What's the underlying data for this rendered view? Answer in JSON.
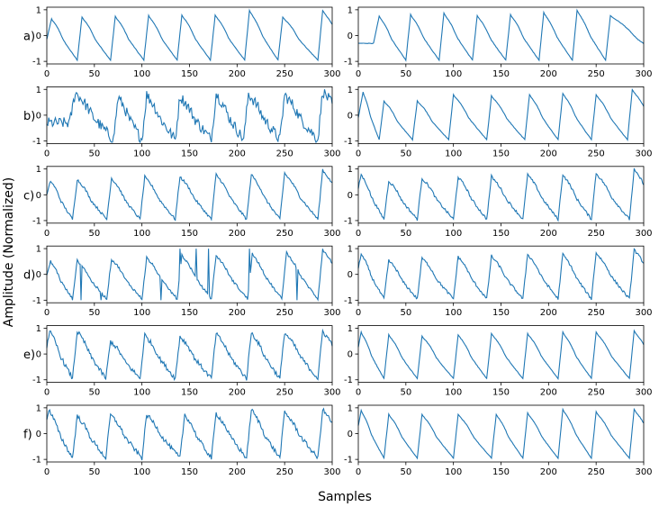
{
  "chart_data": {
    "type": "line",
    "ylabel": "Amplitude (Normalized)",
    "xlabel": "Samples",
    "xlim": [
      0,
      300
    ],
    "ylim": [
      -1.1,
      1.1
    ],
    "x_ticks": [
      "0",
      "50",
      "100",
      "150",
      "200",
      "250",
      "300"
    ],
    "y_ticks": [
      "-1",
      "0",
      "1"
    ],
    "grid": false,
    "line_color": "#1f77b4",
    "rows": [
      {
        "label": "a)",
        "left": {
          "noise": "smooth",
          "peaks": [
            [
              5,
              0.65
            ],
            [
              37,
              0.72
            ],
            [
              72,
              0.75
            ],
            [
              107,
              0.78
            ],
            [
              142,
              0.8
            ],
            [
              177,
              0.8
            ],
            [
              213,
              0.98
            ],
            [
              248,
              0.72
            ],
            [
              290,
              0.98
            ]
          ]
        },
        "right": {
          "noise": "smooth",
          "peaks": [
            [
              22,
              0.75
            ],
            [
              55,
              0.82
            ],
            [
              90,
              0.88
            ],
            [
              125,
              0.78
            ],
            [
              160,
              0.82
            ],
            [
              195,
              0.9
            ],
            [
              230,
              0.98
            ],
            [
              265,
              0.78
            ]
          ]
        }
      },
      {
        "label": "b)",
        "left": {
          "noise": "heavy",
          "peaks": [
            [
              30,
              0.9
            ],
            [
              75,
              0.7
            ],
            [
              105,
              0.8
            ],
            [
              140,
              0.75
            ],
            [
              178,
              0.85
            ],
            [
              212,
              0.85
            ],
            [
              250,
              0.8
            ],
            [
              290,
              0.95
            ]
          ]
        },
        "right": {
          "noise": "smooth",
          "peaks": [
            [
              5,
              0.9
            ],
            [
              27,
              0.55
            ],
            [
              62,
              0.55
            ],
            [
              100,
              0.8
            ],
            [
              140,
              0.75
            ],
            [
              180,
              0.8
            ],
            [
              215,
              0.85
            ],
            [
              250,
              0.8
            ],
            [
              288,
              1.0
            ]
          ]
        }
      },
      {
        "label": "c)",
        "left": {
          "noise": "light",
          "peaks": [
            [
              4,
              0.55
            ],
            [
              32,
              0.6
            ],
            [
              68,
              0.65
            ],
            [
              103,
              0.7
            ],
            [
              140,
              0.72
            ],
            [
              178,
              0.8
            ],
            [
              215,
              0.8
            ],
            [
              250,
              0.85
            ],
            [
              290,
              0.98
            ]
          ]
        },
        "right": {
          "noise": "light",
          "peaks": [
            [
              3,
              0.8
            ],
            [
              32,
              0.55
            ],
            [
              67,
              0.65
            ],
            [
              105,
              0.7
            ],
            [
              140,
              0.72
            ],
            [
              178,
              0.8
            ],
            [
              215,
              0.8
            ],
            [
              250,
              0.85
            ],
            [
              290,
              0.98
            ]
          ]
        }
      },
      {
        "label": "d)",
        "left": {
          "noise": "spikes",
          "peaks": [
            [
              4,
              0.5
            ],
            [
              32,
              0.55
            ],
            [
              68,
              0.6
            ],
            [
              105,
              0.65
            ],
            [
              142,
              0.75
            ],
            [
              178,
              0.75
            ],
            [
              216,
              0.8
            ],
            [
              252,
              0.85
            ],
            [
              290,
              0.98
            ]
          ]
        },
        "right": {
          "noise": "light",
          "peaks": [
            [
              3,
              0.8
            ],
            [
              32,
              0.55
            ],
            [
              67,
              0.65
            ],
            [
              105,
              0.7
            ],
            [
              140,
              0.72
            ],
            [
              178,
              0.8
            ],
            [
              215,
              0.8
            ],
            [
              250,
              0.85
            ],
            [
              290,
              0.98
            ]
          ]
        }
      },
      {
        "label": "e)",
        "left": {
          "noise": "medium",
          "peaks": [
            [
              3,
              0.9
            ],
            [
              32,
              0.9
            ],
            [
              67,
              0.5
            ],
            [
              103,
              0.75
            ],
            [
              140,
              0.7
            ],
            [
              178,
              0.8
            ],
            [
              215,
              0.85
            ],
            [
              250,
              0.85
            ],
            [
              290,
              0.9
            ]
          ]
        },
        "right": {
          "noise": "smooth",
          "peaks": [
            [
              3,
              0.85
            ],
            [
              32,
              0.75
            ],
            [
              67,
              0.7
            ],
            [
              105,
              0.75
            ],
            [
              140,
              0.8
            ],
            [
              178,
              0.8
            ],
            [
              215,
              0.85
            ],
            [
              250,
              0.85
            ],
            [
              290,
              0.9
            ]
          ]
        }
      },
      {
        "label": "f)",
        "left": {
          "noise": "medium",
          "peaks": [
            [
              2,
              0.95
            ],
            [
              32,
              0.7
            ],
            [
              67,
              0.75
            ],
            [
              105,
              0.75
            ],
            [
              145,
              0.75
            ],
            [
              178,
              0.8
            ],
            [
              215,
              0.95
            ],
            [
              250,
              0.85
            ],
            [
              290,
              0.95
            ]
          ]
        },
        "right": {
          "noise": "smooth",
          "peaks": [
            [
              3,
              0.9
            ],
            [
              32,
              0.75
            ],
            [
              67,
              0.75
            ],
            [
              105,
              0.75
            ],
            [
              145,
              0.75
            ],
            [
              178,
              0.8
            ],
            [
              215,
              0.95
            ],
            [
              250,
              0.85
            ],
            [
              290,
              0.95
            ]
          ]
        }
      }
    ]
  }
}
